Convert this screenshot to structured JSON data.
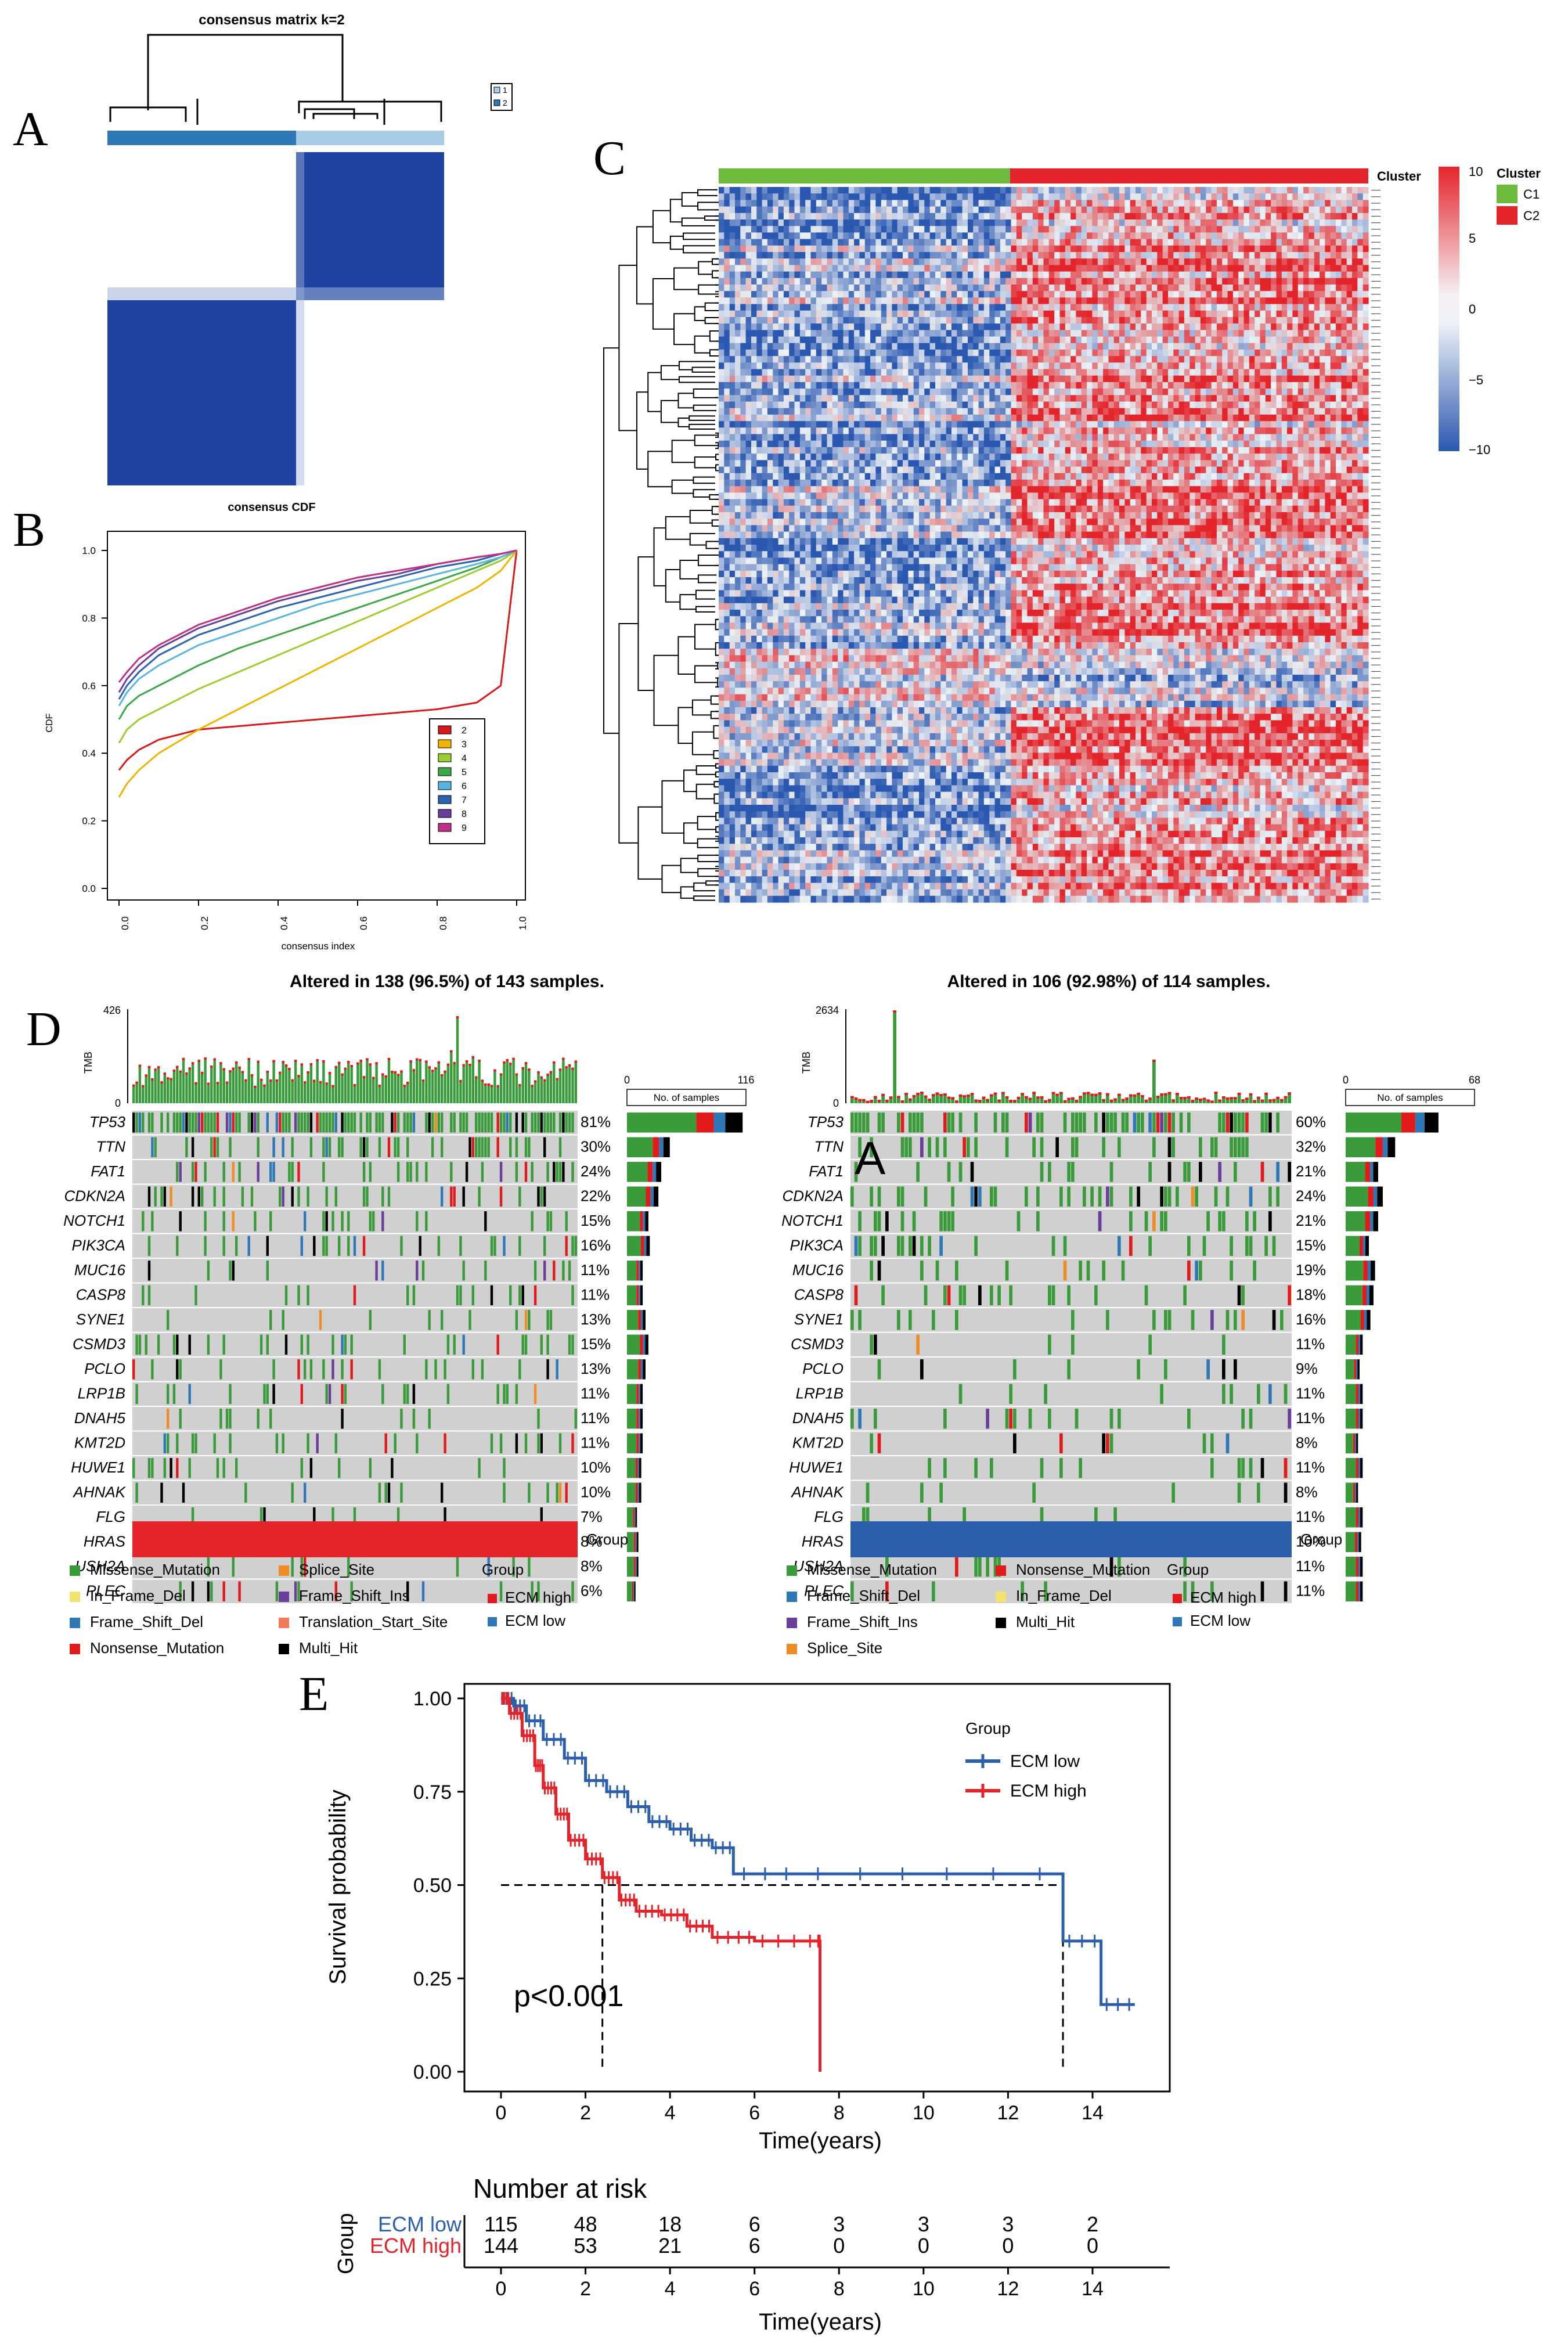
{
  "panel_letters": {
    "a": "A",
    "b": "B",
    "c": "C",
    "d": "D",
    "e": "E"
  },
  "colors": {
    "blue_dark": "#1f43a2",
    "blue_light": "#a9cce6",
    "blue_mid": "#2f78b7",
    "green": "#3a9b3a",
    "orange": "#f08c24",
    "purple": "#6a3e9a",
    "yellow": "#f2e36e",
    "red": "#e31a1c",
    "salmon": "#f4795a",
    "black": "#000000",
    "grey": "#d0d0d0",
    "c1": "#6cbb3c",
    "c2": "#e4242b",
    "ecm_low": "#2c5fab",
    "ecm_high": "#e4242b"
  },
  "chart_data": [
    {
      "panel": "A",
      "type": "heatmap",
      "title": "consensus matrix k=2",
      "legend": [
        "1",
        "2"
      ],
      "cluster_split_fraction": 0.56
    },
    {
      "panel": "B",
      "type": "line",
      "title": "consensus CDF",
      "xlabel": "consensus index",
      "ylabel": "CDF",
      "xlim": [
        0,
        1
      ],
      "ylim": [
        0,
        1
      ],
      "xticks": [
        "0.0",
        "0.2",
        "0.4",
        "0.6",
        "0.8",
        "1.0"
      ],
      "yticks": [
        "0.0",
        "0.2",
        "0.4",
        "0.6",
        "0.8",
        "1.0"
      ],
      "x": [
        0.0,
        0.02,
        0.05,
        0.1,
        0.2,
        0.3,
        0.4,
        0.5,
        0.6,
        0.7,
        0.8,
        0.9,
        0.96,
        1.0
      ],
      "series": [
        {
          "name": "2",
          "color": "#d7191c",
          "values": [
            0.35,
            0.38,
            0.41,
            0.44,
            0.47,
            0.48,
            0.49,
            0.5,
            0.51,
            0.52,
            0.53,
            0.55,
            0.6,
            1.0
          ]
        },
        {
          "name": "3",
          "color": "#f0b400",
          "values": [
            0.27,
            0.31,
            0.35,
            0.4,
            0.47,
            0.53,
            0.59,
            0.65,
            0.71,
            0.77,
            0.83,
            0.89,
            0.94,
            1.0
          ]
        },
        {
          "name": "4",
          "color": "#9acd32",
          "values": [
            0.43,
            0.47,
            0.5,
            0.53,
            0.59,
            0.64,
            0.69,
            0.74,
            0.79,
            0.84,
            0.89,
            0.94,
            0.97,
            1.0
          ]
        },
        {
          "name": "5",
          "color": "#3aa845",
          "values": [
            0.5,
            0.54,
            0.57,
            0.6,
            0.66,
            0.71,
            0.75,
            0.79,
            0.83,
            0.87,
            0.91,
            0.95,
            0.98,
            1.0
          ]
        },
        {
          "name": "6",
          "color": "#5ab4e0",
          "values": [
            0.54,
            0.58,
            0.62,
            0.66,
            0.72,
            0.76,
            0.8,
            0.84,
            0.87,
            0.9,
            0.93,
            0.96,
            0.98,
            1.0
          ]
        },
        {
          "name": "7",
          "color": "#2a63b0",
          "values": [
            0.56,
            0.6,
            0.64,
            0.69,
            0.75,
            0.79,
            0.83,
            0.86,
            0.89,
            0.92,
            0.95,
            0.97,
            0.99,
            1.0
          ]
        },
        {
          "name": "8",
          "color": "#6a3e9a",
          "values": [
            0.58,
            0.62,
            0.66,
            0.71,
            0.77,
            0.81,
            0.85,
            0.88,
            0.91,
            0.93,
            0.96,
            0.98,
            0.99,
            1.0
          ]
        },
        {
          "name": "9",
          "color": "#c03088",
          "values": [
            0.61,
            0.64,
            0.68,
            0.72,
            0.78,
            0.82,
            0.86,
            0.89,
            0.92,
            0.94,
            0.96,
            0.98,
            0.99,
            1.0
          ]
        }
      ],
      "legend_position": "bottom-right"
    },
    {
      "panel": "C",
      "type": "heatmap",
      "annotation_title": "Cluster",
      "clusters": [
        {
          "name": "C1",
          "fraction": 0.45
        },
        {
          "name": "C2",
          "fraction": 0.55
        }
      ],
      "colorbar_ticks": [
        "10",
        "5",
        "0",
        "−5",
        "−10"
      ],
      "colorbar_range": [
        -10,
        10
      ]
    },
    {
      "panel": "D",
      "type": "bar",
      "subtype": "oncoplot",
      "cohorts": [
        {
          "title": "Altered in 138 (96.5%) of 143 samples.",
          "tmb_label": "TMB",
          "tmb_max": "426",
          "tmb_min": "0",
          "samples_label": "No. of samples",
          "samples_axis": [
            "0",
            "116"
          ],
          "group_label": "Group",
          "group_color": "#e4242b",
          "genes": [
            "TP53",
            "TTN",
            "FAT1",
            "CDKN2A",
            "NOTCH1",
            "PIK3CA",
            "MUC16",
            "CASP8",
            "SYNE1",
            "CSMD3",
            "PCLO",
            "LRP1B",
            "DNAH5",
            "KMT2D",
            "HUWE1",
            "AHNAK",
            "FLG",
            "HRAS",
            "USH2A",
            "PLEC"
          ],
          "percents": [
            "81%",
            "30%",
            "24%",
            "22%",
            "15%",
            "16%",
            "11%",
            "11%",
            "13%",
            "15%",
            "13%",
            "11%",
            "11%",
            "11%",
            "10%",
            "10%",
            "7%",
            "8%",
            "8%",
            "6%"
          ],
          "legend_types": [
            "Missense_Mutation",
            "In_Frame_Del",
            "Frame_Shift_Del",
            "Nonsense_Mutation",
            "Splice_Site",
            "Frame_Shift_Ins",
            "Translation_Start_Site",
            "Multi_Hit"
          ],
          "legend_type_colors": [
            "#3a9b3a",
            "#f2e36e",
            "#2f78b7",
            "#e31a1c",
            "#f08c24",
            "#6a3e9a",
            "#f4795a",
            "#000000"
          ],
          "legend_group_title": "Group",
          "legend_groups": [
            "ECM high",
            "ECM low"
          ]
        },
        {
          "title": "Altered in 106 (92.98%) of 114 samples.",
          "tmb_label": "TMB",
          "tmb_max": "2634",
          "tmb_min": "0",
          "samples_label": "No. of samples",
          "samples_axis": [
            "0",
            "68"
          ],
          "group_label": "Group",
          "group_color": "#2c5fab",
          "genes": [
            "TP53",
            "TTN",
            "FAT1",
            "CDKN2A",
            "NOTCH1",
            "PIK3CA",
            "MUC16",
            "CASP8",
            "SYNE1",
            "CSMD3",
            "PCLO",
            "LRP1B",
            "DNAH5",
            "KMT2D",
            "HUWE1",
            "AHNAK",
            "FLG",
            "HRAS",
            "USH2A",
            "PLEC"
          ],
          "percents": [
            "60%",
            "32%",
            "21%",
            "24%",
            "21%",
            "15%",
            "19%",
            "18%",
            "16%",
            "11%",
            "9%",
            "11%",
            "11%",
            "8%",
            "11%",
            "8%",
            "11%",
            "10%",
            "11%",
            "11%"
          ],
          "legend_types": [
            "Missense_Mutation",
            "Frame_Shift_Del",
            "Frame_Shift_Ins",
            "Splice_Site",
            "Nonsense_Mutation",
            "In_Frame_Del",
            "Multi_Hit"
          ],
          "legend_type_colors": [
            "#3a9b3a",
            "#2f78b7",
            "#6a3e9a",
            "#f08c24",
            "#e31a1c",
            "#f2e36e",
            "#000000"
          ],
          "legend_group_title": "Group",
          "legend_groups": [
            "ECM high",
            "ECM low"
          ]
        }
      ]
    },
    {
      "panel": "E",
      "type": "line",
      "subtype": "kaplan-meier",
      "xlabel": "Time(years)",
      "ylabel": "Survival probability",
      "xlim": [
        -0.5,
        16.2
      ],
      "ylim": [
        0,
        1
      ],
      "xticks": [
        "0",
        "2",
        "4",
        "6",
        "8",
        "10",
        "12",
        "14"
      ],
      "yticks": [
        "0.00",
        "0.25",
        "0.50",
        "0.75",
        "1.00"
      ],
      "legend_title": "Group",
      "pvalue": "p<0.001",
      "median_survival": [
        2.4,
        13.3
      ],
      "series": [
        {
          "name": "ECM low",
          "color": "#2c5fab",
          "x": [
            0,
            0.3,
            0.6,
            1.0,
            1.5,
            2.0,
            2.5,
            3.0,
            3.5,
            4.0,
            4.5,
            5.0,
            5.5,
            7.0,
            10.0,
            13.3,
            14.2,
            15.0
          ],
          "y": [
            1.0,
            0.98,
            0.94,
            0.89,
            0.84,
            0.78,
            0.75,
            0.71,
            0.67,
            0.65,
            0.62,
            0.6,
            0.53,
            0.53,
            0.53,
            0.35,
            0.18,
            0.18
          ]
        },
        {
          "name": "ECM high",
          "color": "#e4242b",
          "x": [
            0,
            0.2,
            0.5,
            0.8,
            1.0,
            1.3,
            1.6,
            2.0,
            2.4,
            2.8,
            3.2,
            3.8,
            4.4,
            5.0,
            6.0,
            7.5,
            7.55
          ],
          "y": [
            1.0,
            0.96,
            0.9,
            0.82,
            0.76,
            0.69,
            0.62,
            0.57,
            0.52,
            0.46,
            0.43,
            0.42,
            0.39,
            0.36,
            0.35,
            0.35,
            0.0
          ]
        }
      ],
      "risk_table": {
        "title": "Number at risk",
        "ylabel": "Group",
        "xlabel": "Time(years)",
        "rows": [
          {
            "name": "ECM low",
            "color": "#2c5fab",
            "values": [
              "115",
              "48",
              "18",
              "6",
              "3",
              "3",
              "3",
              "2"
            ]
          },
          {
            "name": "ECM high",
            "color": "#e4242b",
            "values": [
              "144",
              "53",
              "21",
              "6",
              "0",
              "0",
              "0",
              "0"
            ]
          }
        ],
        "times": [
          0,
          2,
          4,
          6,
          8,
          10,
          12,
          14
        ]
      }
    }
  ]
}
